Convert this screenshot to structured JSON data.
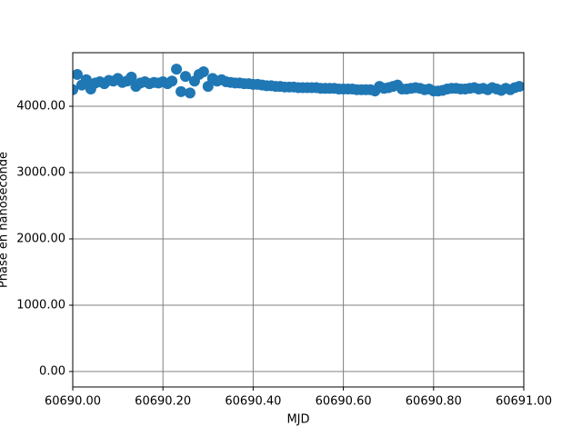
{
  "chart_data": {
    "type": "scatter",
    "xlabel": "MJD",
    "ylabel": "Phase en nanoseconde",
    "series": [
      {
        "color": "#1f77b4",
        "x": [
          60690.0,
          60690.01,
          60690.02,
          60690.03,
          60690.04,
          60690.05,
          60690.06,
          60690.07,
          60690.08,
          60690.09,
          60690.1,
          60690.11,
          60690.12,
          60690.13,
          60690.14,
          60690.15,
          60690.16,
          60690.17,
          60690.18,
          60690.19,
          60690.2,
          60690.21,
          60690.22,
          60690.23,
          60690.24,
          60690.25,
          60690.26,
          60690.27,
          60690.28,
          60690.29,
          60690.3,
          60690.31,
          60690.32,
          60690.33,
          60690.34,
          60690.35,
          60690.36,
          60690.37,
          60690.38,
          60690.39,
          60690.4,
          60690.41,
          60690.42,
          60690.43,
          60690.44,
          60690.45,
          60690.46,
          60690.47,
          60690.48,
          60690.49,
          60690.5,
          60690.51,
          60690.52,
          60690.53,
          60690.54,
          60690.55,
          60690.56,
          60690.57,
          60690.58,
          60690.59,
          60690.6,
          60690.61,
          60690.62,
          60690.63,
          60690.64,
          60690.65,
          60690.66,
          60690.67,
          60690.68,
          60690.69,
          60690.7,
          60690.71,
          60690.72,
          60690.73,
          60690.74,
          60690.75,
          60690.76,
          60690.77,
          60690.78,
          60690.79,
          60690.8,
          60690.81,
          60690.82,
          60690.83,
          60690.84,
          60690.85,
          60690.86,
          60690.87,
          60690.88,
          60690.89,
          60690.9,
          60690.91,
          60690.92,
          60690.93,
          60690.94,
          60690.95,
          60690.96,
          60690.97,
          60690.98,
          60690.99
        ],
        "values": [
          4250,
          4480,
          4320,
          4400,
          4260,
          4350,
          4370,
          4340,
          4390,
          4380,
          4420,
          4360,
          4380,
          4440,
          4300,
          4350,
          4370,
          4340,
          4360,
          4350,
          4370,
          4340,
          4380,
          4560,
          4220,
          4450,
          4200,
          4380,
          4480,
          4520,
          4300,
          4420,
          4380,
          4400,
          4370,
          4360,
          4350,
          4350,
          4340,
          4340,
          4330,
          4330,
          4320,
          4310,
          4310,
          4300,
          4300,
          4290,
          4290,
          4290,
          4280,
          4280,
          4280,
          4280,
          4280,
          4270,
          4270,
          4270,
          4270,
          4260,
          4260,
          4260,
          4260,
          4250,
          4250,
          4250,
          4250,
          4230,
          4300,
          4270,
          4280,
          4300,
          4320,
          4260,
          4260,
          4270,
          4280,
          4270,
          4250,
          4260,
          4230,
          4230,
          4240,
          4260,
          4270,
          4270,
          4260,
          4260,
          4270,
          4280,
          4260,
          4270,
          4250,
          4280,
          4260,
          4240,
          4270,
          4250,
          4280,
          4300
        ]
      }
    ],
    "xlim": [
      60690.0,
      60691.0
    ],
    "xticks": [
      {
        "value": 60690.0,
        "label": "60690.00"
      },
      {
        "value": 60690.2,
        "label": "60690.20"
      },
      {
        "value": 60690.4,
        "label": "60690.40"
      },
      {
        "value": 60690.6,
        "label": "60690.60"
      },
      {
        "value": 60690.8,
        "label": "60690.80"
      },
      {
        "value": 60691.0,
        "label": "60691.00"
      }
    ],
    "ylim": [
      -233,
      4808
    ],
    "yticks": [
      {
        "value": 0,
        "label": "0.00"
      },
      {
        "value": 1000,
        "label": "1000.00"
      },
      {
        "value": 2000,
        "label": "2000.00"
      },
      {
        "value": 3000,
        "label": "3000.00"
      },
      {
        "value": 4000,
        "label": "4000.00"
      }
    ],
    "grid": true
  }
}
